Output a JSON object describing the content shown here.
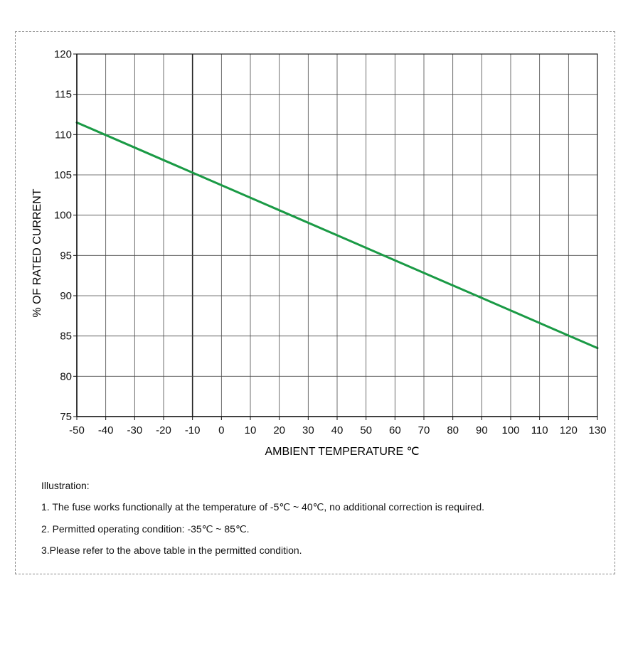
{
  "chart_data": {
    "type": "line",
    "xlabel": "AMBIENT TEMPERATURE ℃",
    "ylabel": "% OF RATED CURRENT",
    "xlim": [
      -50,
      130
    ],
    "ylim": [
      75,
      120
    ],
    "x_ticks": [
      -50,
      -40,
      -30,
      -20,
      -10,
      0,
      10,
      20,
      30,
      40,
      50,
      60,
      70,
      80,
      90,
      100,
      110,
      120,
      130
    ],
    "y_ticks": [
      75,
      80,
      85,
      90,
      95,
      100,
      105,
      110,
      115,
      120
    ],
    "grid": true,
    "reference_line_x": -10,
    "series": [
      {
        "x": [
          -50,
          130
        ],
        "y": [
          111.5,
          83.5
        ],
        "color": "#1a9a45"
      }
    ]
  },
  "notes": {
    "heading": "Illustration:",
    "items": [
      "1. The fuse works functionally at the temperature of -5℃ ~ 40℃, no additional correction is required.",
      "2. Permitted operating condition: -35℃ ~ 85℃.",
      "3.Please refer to the above table in the permitted condition."
    ]
  }
}
